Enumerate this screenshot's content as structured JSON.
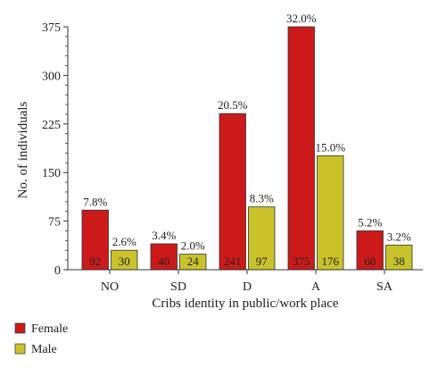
{
  "chart_data": {
    "type": "bar",
    "xlabel": "Cribs identity in public/work place",
    "ylabel": "No. of individuals",
    "ylim": [
      0,
      375
    ],
    "yticks": [
      0,
      75,
      150,
      225,
      300,
      375
    ],
    "categories": [
      "NO",
      "SD",
      "D",
      "A",
      "SA"
    ],
    "series": [
      {
        "name": "Female",
        "color": "#cc1a1a",
        "values": [
          92,
          40,
          241,
          375,
          60
        ],
        "percent_labels": [
          "7.8%",
          "3.4%",
          "20.5%",
          "32.0%",
          "5.2%"
        ]
      },
      {
        "name": "Male",
        "color": "#c9c22a",
        "values": [
          30,
          24,
          97,
          176,
          38
        ],
        "percent_labels": [
          "2.6%",
          "2.0%",
          "8.3%",
          "15.0%",
          "3.2%"
        ]
      }
    ],
    "legend_position": "bottom-left",
    "grid": false
  }
}
